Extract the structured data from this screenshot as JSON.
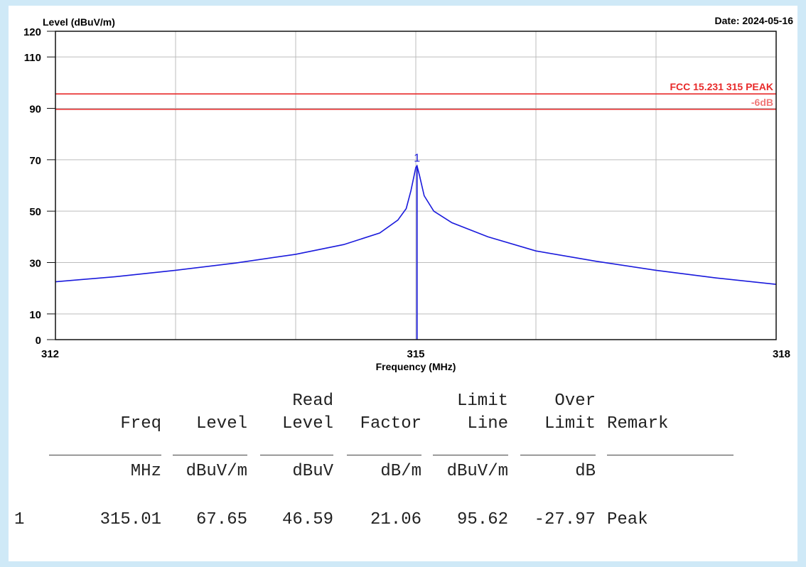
{
  "colors": {
    "trace": "#1a1adc",
    "limit": "#e82a2a",
    "margin": "#f07777",
    "grid": "#bdbdbd",
    "frame": "#111111",
    "page_bg": "#cfe9f7"
  },
  "chart_data": {
    "type": "line",
    "ylabel": "Level (dBuV/m)",
    "xlabel": "Frequency (MHz)",
    "date_label": "Date: 2024-05-16",
    "xlim": [
      312,
      318
    ],
    "ylim": [
      0,
      120
    ],
    "x_ticks": [
      312,
      315,
      318
    ],
    "x_tick_labels": [
      "312",
      "315",
      "318"
    ],
    "y_ticks": [
      0,
      10,
      30,
      50,
      70,
      90,
      110,
      120
    ],
    "y_tick_labels": [
      "0",
      "10",
      "30",
      "50",
      "70",
      "90",
      "110",
      "120"
    ],
    "grid": true,
    "limit_line": {
      "label": "FCC 15.231 315  PEAK",
      "value": 95.62
    },
    "margin_line": {
      "label": "-6dB",
      "value": 89.62
    },
    "series": [
      {
        "x": [
          312.0,
          312.5,
          313.0,
          313.5,
          314.0,
          314.4,
          314.7,
          314.85,
          314.92,
          314.96,
          315.0,
          315.01,
          315.03,
          315.07,
          315.15,
          315.3,
          315.6,
          316.0,
          316.5,
          317.0,
          317.5,
          318.0
        ],
        "y": [
          22.5,
          24.5,
          27.0,
          29.8,
          33.2,
          37.0,
          41.5,
          46.5,
          51.0,
          58.0,
          67.0,
          67.65,
          64.0,
          56.0,
          50.0,
          45.5,
          40.0,
          34.5,
          30.5,
          27.0,
          24.0,
          21.5
        ]
      }
    ],
    "marker": {
      "label": "1",
      "x": 315.01,
      "y": 67.65
    }
  },
  "table": {
    "header_top": [
      "",
      "",
      "Read",
      "",
      "Limit",
      "Over",
      ""
    ],
    "header_mid": [
      "Freq",
      "Level",
      "Level",
      "Factor",
      "Line",
      "Limit",
      "Remark"
    ],
    "units": [
      "MHz",
      "dBuV/m",
      "dBuV",
      "dB/m",
      "dBuV/m",
      "dB",
      ""
    ],
    "rows": [
      {
        "index": "1",
        "cells": [
          "315.01",
          "67.65",
          "46.59",
          "21.06",
          "95.62",
          "-27.97",
          "Peak"
        ]
      }
    ]
  }
}
